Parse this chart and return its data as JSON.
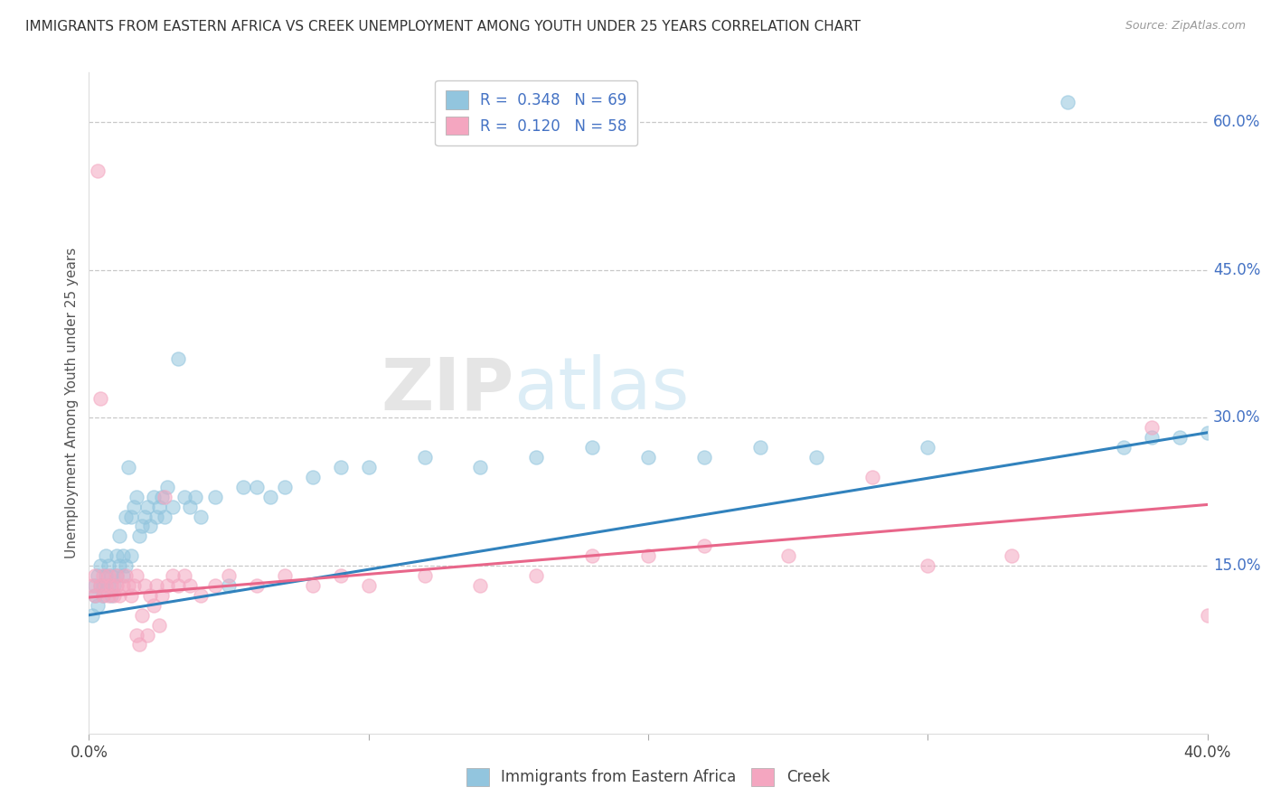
{
  "title": "IMMIGRANTS FROM EASTERN AFRICA VS CREEK UNEMPLOYMENT AMONG YOUTH UNDER 25 YEARS CORRELATION CHART",
  "source": "Source: ZipAtlas.com",
  "ylabel": "Unemployment Among Youth under 25 years",
  "xlim": [
    0.0,
    0.4
  ],
  "ylim": [
    -0.02,
    0.65
  ],
  "y_ticks_right": [
    0.15,
    0.3,
    0.45,
    0.6
  ],
  "y_tick_labels_right": [
    "15.0%",
    "30.0%",
    "45.0%",
    "60.0%"
  ],
  "legend_labels_bottom": [
    "Immigrants from Eastern Africa",
    "Creek"
  ],
  "blue_color": "#92c5de",
  "pink_color": "#f4a6c0",
  "blue_line_color": "#3182bd",
  "pink_line_color": "#e8668a",
  "R_blue": 0.348,
  "N_blue": 69,
  "R_pink": 0.12,
  "N_pink": 58,
  "blue_line_start_y": 0.1,
  "blue_line_end_y": 0.285,
  "pink_line_start_y": 0.118,
  "pink_line_end_y": 0.212,
  "blue_scatter": [
    [
      0.001,
      0.1
    ],
    [
      0.002,
      0.12
    ],
    [
      0.002,
      0.13
    ],
    [
      0.003,
      0.11
    ],
    [
      0.003,
      0.14
    ],
    [
      0.004,
      0.13
    ],
    [
      0.004,
      0.15
    ],
    [
      0.005,
      0.12
    ],
    [
      0.005,
      0.13
    ],
    [
      0.006,
      0.14
    ],
    [
      0.006,
      0.16
    ],
    [
      0.007,
      0.13
    ],
    [
      0.007,
      0.15
    ],
    [
      0.008,
      0.12
    ],
    [
      0.008,
      0.14
    ],
    [
      0.009,
      0.13
    ],
    [
      0.01,
      0.14
    ],
    [
      0.01,
      0.16
    ],
    [
      0.011,
      0.15
    ],
    [
      0.011,
      0.18
    ],
    [
      0.012,
      0.14
    ],
    [
      0.012,
      0.16
    ],
    [
      0.013,
      0.15
    ],
    [
      0.013,
      0.2
    ],
    [
      0.014,
      0.25
    ],
    [
      0.015,
      0.16
    ],
    [
      0.015,
      0.2
    ],
    [
      0.016,
      0.21
    ],
    [
      0.017,
      0.22
    ],
    [
      0.018,
      0.18
    ],
    [
      0.019,
      0.19
    ],
    [
      0.02,
      0.2
    ],
    [
      0.021,
      0.21
    ],
    [
      0.022,
      0.19
    ],
    [
      0.023,
      0.22
    ],
    [
      0.024,
      0.2
    ],
    [
      0.025,
      0.21
    ],
    [
      0.026,
      0.22
    ],
    [
      0.027,
      0.2
    ],
    [
      0.028,
      0.23
    ],
    [
      0.03,
      0.21
    ],
    [
      0.032,
      0.36
    ],
    [
      0.034,
      0.22
    ],
    [
      0.036,
      0.21
    ],
    [
      0.038,
      0.22
    ],
    [
      0.04,
      0.2
    ],
    [
      0.045,
      0.22
    ],
    [
      0.05,
      0.13
    ],
    [
      0.055,
      0.23
    ],
    [
      0.06,
      0.23
    ],
    [
      0.065,
      0.22
    ],
    [
      0.07,
      0.23
    ],
    [
      0.08,
      0.24
    ],
    [
      0.09,
      0.25
    ],
    [
      0.1,
      0.25
    ],
    [
      0.12,
      0.26
    ],
    [
      0.14,
      0.25
    ],
    [
      0.16,
      0.26
    ],
    [
      0.18,
      0.27
    ],
    [
      0.2,
      0.26
    ],
    [
      0.22,
      0.26
    ],
    [
      0.24,
      0.27
    ],
    [
      0.26,
      0.26
    ],
    [
      0.3,
      0.27
    ],
    [
      0.35,
      0.62
    ],
    [
      0.37,
      0.27
    ],
    [
      0.38,
      0.28
    ],
    [
      0.39,
      0.28
    ],
    [
      0.4,
      0.285
    ]
  ],
  "pink_scatter": [
    [
      0.001,
      0.13
    ],
    [
      0.002,
      0.14
    ],
    [
      0.002,
      0.12
    ],
    [
      0.003,
      0.55
    ],
    [
      0.004,
      0.13
    ],
    [
      0.004,
      0.32
    ],
    [
      0.005,
      0.14
    ],
    [
      0.005,
      0.12
    ],
    [
      0.006,
      0.13
    ],
    [
      0.007,
      0.14
    ],
    [
      0.007,
      0.12
    ],
    [
      0.008,
      0.13
    ],
    [
      0.009,
      0.12
    ],
    [
      0.01,
      0.14
    ],
    [
      0.01,
      0.13
    ],
    [
      0.011,
      0.12
    ],
    [
      0.012,
      0.13
    ],
    [
      0.013,
      0.14
    ],
    [
      0.014,
      0.13
    ],
    [
      0.015,
      0.12
    ],
    [
      0.016,
      0.13
    ],
    [
      0.017,
      0.14
    ],
    [
      0.017,
      0.08
    ],
    [
      0.018,
      0.07
    ],
    [
      0.019,
      0.1
    ],
    [
      0.02,
      0.13
    ],
    [
      0.021,
      0.08
    ],
    [
      0.022,
      0.12
    ],
    [
      0.023,
      0.11
    ],
    [
      0.024,
      0.13
    ],
    [
      0.025,
      0.09
    ],
    [
      0.026,
      0.12
    ],
    [
      0.027,
      0.22
    ],
    [
      0.028,
      0.13
    ],
    [
      0.03,
      0.14
    ],
    [
      0.032,
      0.13
    ],
    [
      0.034,
      0.14
    ],
    [
      0.036,
      0.13
    ],
    [
      0.04,
      0.12
    ],
    [
      0.045,
      0.13
    ],
    [
      0.05,
      0.14
    ],
    [
      0.06,
      0.13
    ],
    [
      0.07,
      0.14
    ],
    [
      0.08,
      0.13
    ],
    [
      0.09,
      0.14
    ],
    [
      0.1,
      0.13
    ],
    [
      0.12,
      0.14
    ],
    [
      0.14,
      0.13
    ],
    [
      0.16,
      0.14
    ],
    [
      0.18,
      0.16
    ],
    [
      0.2,
      0.16
    ],
    [
      0.22,
      0.17
    ],
    [
      0.25,
      0.16
    ],
    [
      0.28,
      0.24
    ],
    [
      0.3,
      0.15
    ],
    [
      0.33,
      0.16
    ],
    [
      0.38,
      0.29
    ],
    [
      0.4,
      0.1
    ]
  ]
}
